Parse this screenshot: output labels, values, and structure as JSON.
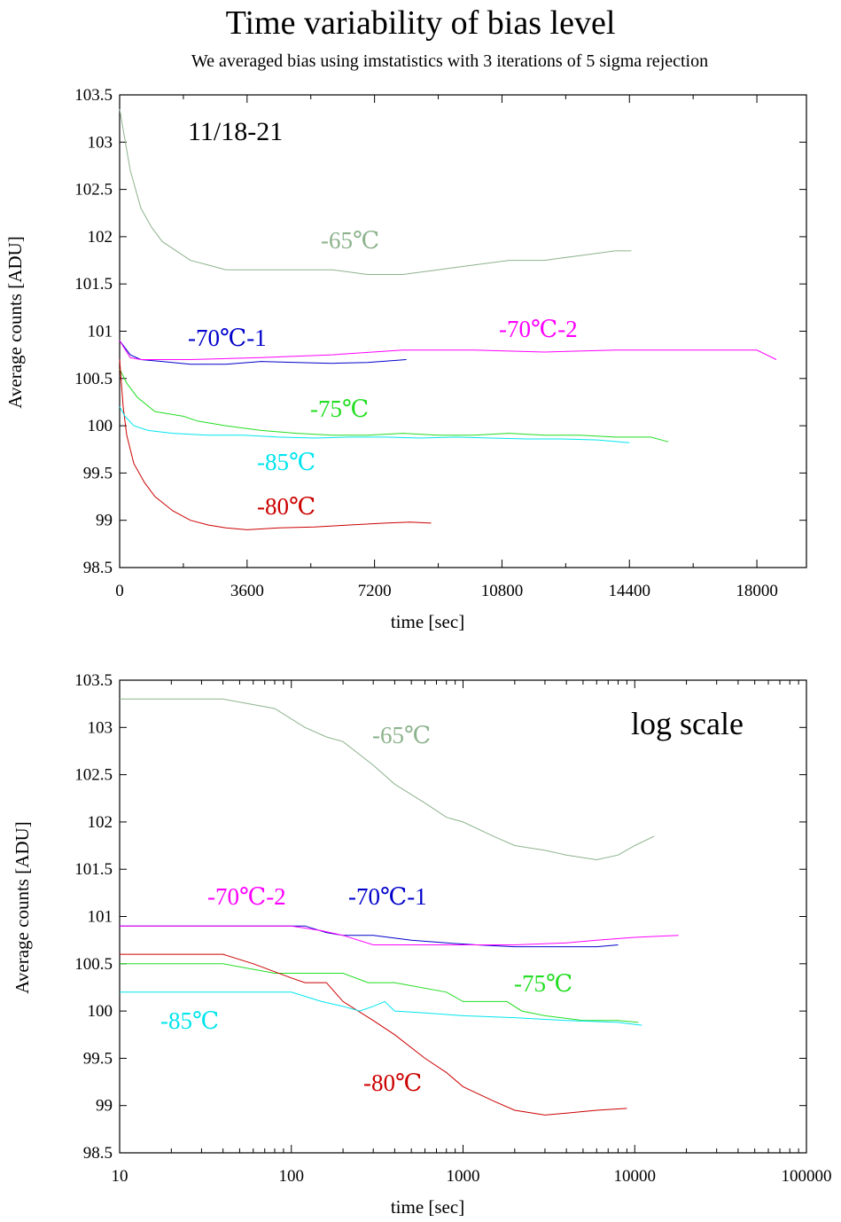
{
  "title": "Time variability of bias level",
  "subtitle": "We averaged bias using imstatistics with 3 iterations of 5 sigma rejection",
  "chart_data": [
    {
      "type": "line",
      "annotation": "11/18-21",
      "xlabel": "time [sec]",
      "ylabel": "Average counts [ADU]",
      "xlim": [
        0,
        19400
      ],
      "ylim": [
        98.5,
        103.5
      ],
      "xticks": [
        0,
        3600,
        7200,
        10800,
        14400,
        18000
      ],
      "xtick_labels": [
        "0",
        "3600",
        "7200",
        "10800",
        "14400",
        "18000"
      ],
      "yticks": [
        98.5,
        99,
        99.5,
        100,
        100.5,
        101,
        101.5,
        102,
        102.5,
        103,
        103.5
      ],
      "ytick_labels": [
        "98.5",
        "99",
        "99.5",
        "100",
        "100.5",
        "101",
        "101.5",
        "102",
        "102.5",
        "103",
        "103.5"
      ],
      "grid": false,
      "series": [
        {
          "name": "-65℃",
          "color": "#8db38d",
          "x": [
            0,
            300,
            600,
            900,
            1200,
            1600,
            2000,
            2500,
            3000,
            3500,
            4000,
            5000,
            6000,
            7000,
            8000,
            9000,
            10000,
            11000,
            12000,
            13000,
            14000,
            14450
          ],
          "y": [
            103.35,
            102.7,
            102.3,
            102.1,
            101.95,
            101.85,
            101.75,
            101.7,
            101.65,
            101.65,
            101.65,
            101.65,
            101.65,
            101.6,
            101.6,
            101.65,
            101.7,
            101.75,
            101.75,
            101.8,
            101.85,
            101.85
          ]
        },
        {
          "name": "-70℃-1",
          "color": "#0000cc",
          "x": [
            0,
            300,
            600,
            1200,
            2000,
            3000,
            4000,
            5000,
            6000,
            7000,
            8100
          ],
          "y": [
            100.9,
            100.75,
            100.7,
            100.68,
            100.65,
            100.65,
            100.68,
            100.67,
            100.66,
            100.67,
            100.7
          ]
        },
        {
          "name": "-70℃-2",
          "color": "#ff00ff",
          "x": [
            0,
            300,
            600,
            2000,
            4000,
            6000,
            8000,
            10000,
            12000,
            14000,
            16000,
            18000,
            18550
          ],
          "y": [
            100.9,
            100.72,
            100.7,
            100.7,
            100.72,
            100.75,
            100.8,
            100.8,
            100.78,
            100.8,
            100.8,
            100.8,
            100.7
          ]
        },
        {
          "name": "-75℃",
          "color": "#22dd22",
          "x": [
            0,
            200,
            500,
            1000,
            1800,
            2200,
            3000,
            4000,
            5000,
            6000,
            7000,
            8000,
            9000,
            10000,
            11000,
            12000,
            13000,
            14000,
            15000,
            15500
          ],
          "y": [
            100.6,
            100.45,
            100.3,
            100.15,
            100.1,
            100.05,
            100.0,
            99.95,
            99.92,
            99.9,
            99.9,
            99.92,
            99.9,
            99.9,
            99.92,
            99.9,
            99.9,
            99.88,
            99.88,
            99.83
          ]
        },
        {
          "name": "-80℃",
          "color": "#cc0000",
          "x": [
            0,
            100,
            200,
            400,
            700,
            1000,
            1500,
            2000,
            2500,
            3000,
            3600,
            4500,
            5500,
            6500,
            7500,
            8200,
            8800
          ],
          "y": [
            100.7,
            100.2,
            99.9,
            99.6,
            99.4,
            99.25,
            99.1,
            99.0,
            98.95,
            98.92,
            98.9,
            98.92,
            98.93,
            98.95,
            98.97,
            98.98,
            98.97
          ]
        },
        {
          "name": "-85℃",
          "color": "#00e5ee",
          "x": [
            0,
            150,
            400,
            800,
            1500,
            2500,
            3500,
            4500,
            5500,
            6500,
            7500,
            8500,
            9500,
            10500,
            11500,
            12500,
            13500,
            14400,
            14400
          ],
          "y": [
            100.2,
            100.1,
            100.0,
            99.95,
            99.92,
            99.9,
            99.9,
            99.88,
            99.87,
            99.88,
            99.88,
            99.87,
            99.88,
            99.87,
            99.86,
            99.86,
            99.85,
            99.82,
            99.82
          ]
        }
      ]
    },
    {
      "type": "line",
      "annotation": "log scale",
      "xlabel": "time [sec]",
      "ylabel": "Average counts [ADU]",
      "xscale": "log",
      "xlim": [
        10,
        100000
      ],
      "ylim": [
        98.5,
        103.5
      ],
      "xticks": [
        10,
        100,
        1000,
        10000,
        100000
      ],
      "xtick_labels": [
        "10",
        "100",
        "1000",
        "10000",
        "100000"
      ],
      "yticks": [
        98.5,
        99,
        99.5,
        100,
        100.5,
        101,
        101.5,
        102,
        102.5,
        103,
        103.5
      ],
      "ytick_labels": [
        "98.5",
        "99",
        "99.5",
        "100",
        "100.5",
        "101",
        "101.5",
        "102",
        "102.5",
        "103",
        "103.5"
      ],
      "grid": false,
      "series": [
        {
          "name": "-65℃",
          "color": "#8db38d",
          "x": [
            10,
            40,
            80,
            120,
            160,
            200,
            300,
            400,
            600,
            800,
            1000,
            1500,
            2000,
            3000,
            4000,
            6000,
            8000,
            10000,
            13000
          ],
          "y": [
            103.3,
            103.3,
            103.2,
            103.0,
            102.9,
            102.85,
            102.6,
            102.4,
            102.2,
            102.05,
            102.0,
            101.85,
            101.75,
            101.7,
            101.65,
            101.6,
            101.65,
            101.75,
            101.85
          ]
        },
        {
          "name": "-70℃-1",
          "color": "#0000cc",
          "x": [
            10,
            100,
            120,
            160,
            200,
            300,
            500,
            800,
            1200,
            2000,
            3000,
            4000,
            6000,
            8000
          ],
          "y": [
            100.9,
            100.9,
            100.9,
            100.83,
            100.8,
            100.8,
            100.75,
            100.72,
            100.7,
            100.68,
            100.68,
            100.68,
            100.68,
            100.7
          ]
        },
        {
          "name": "-70℃-2",
          "color": "#ff00ff",
          "x": [
            10,
            100,
            150,
            200,
            300,
            500,
            1000,
            2000,
            4000,
            6000,
            10000,
            18000
          ],
          "y": [
            100.9,
            100.9,
            100.85,
            100.8,
            100.7,
            100.7,
            100.7,
            100.7,
            100.72,
            100.75,
            100.78,
            100.8
          ]
        },
        {
          "name": "-75℃",
          "color": "#22dd22",
          "x": [
            10,
            40,
            80,
            200,
            280,
            400,
            800,
            1000,
            1800,
            2200,
            3000,
            5000,
            8000,
            10500
          ],
          "y": [
            100.5,
            100.5,
            100.4,
            100.4,
            100.3,
            100.3,
            100.2,
            100.1,
            100.1,
            100.0,
            99.95,
            99.9,
            99.9,
            99.88
          ]
        },
        {
          "name": "-80℃",
          "color": "#cc0000",
          "x": [
            10,
            40,
            60,
            100,
            120,
            160,
            200,
            300,
            400,
            600,
            800,
            1000,
            1500,
            2000,
            3000,
            4000,
            6000,
            9000
          ],
          "y": [
            100.6,
            100.6,
            100.5,
            100.35,
            100.3,
            100.3,
            100.1,
            99.9,
            99.75,
            99.5,
            99.35,
            99.2,
            99.05,
            98.95,
            98.9,
            98.92,
            98.95,
            98.97
          ]
        },
        {
          "name": "-85℃",
          "color": "#00e5ee",
          "x": [
            10,
            100,
            150,
            200,
            250,
            300,
            350,
            400,
            600,
            1000,
            2000,
            4000,
            8000,
            11000
          ],
          "y": [
            100.2,
            100.2,
            100.1,
            100.05,
            100.0,
            100.05,
            100.1,
            100.0,
            99.98,
            99.95,
            99.93,
            99.9,
            99.88,
            99.85
          ]
        }
      ]
    }
  ]
}
